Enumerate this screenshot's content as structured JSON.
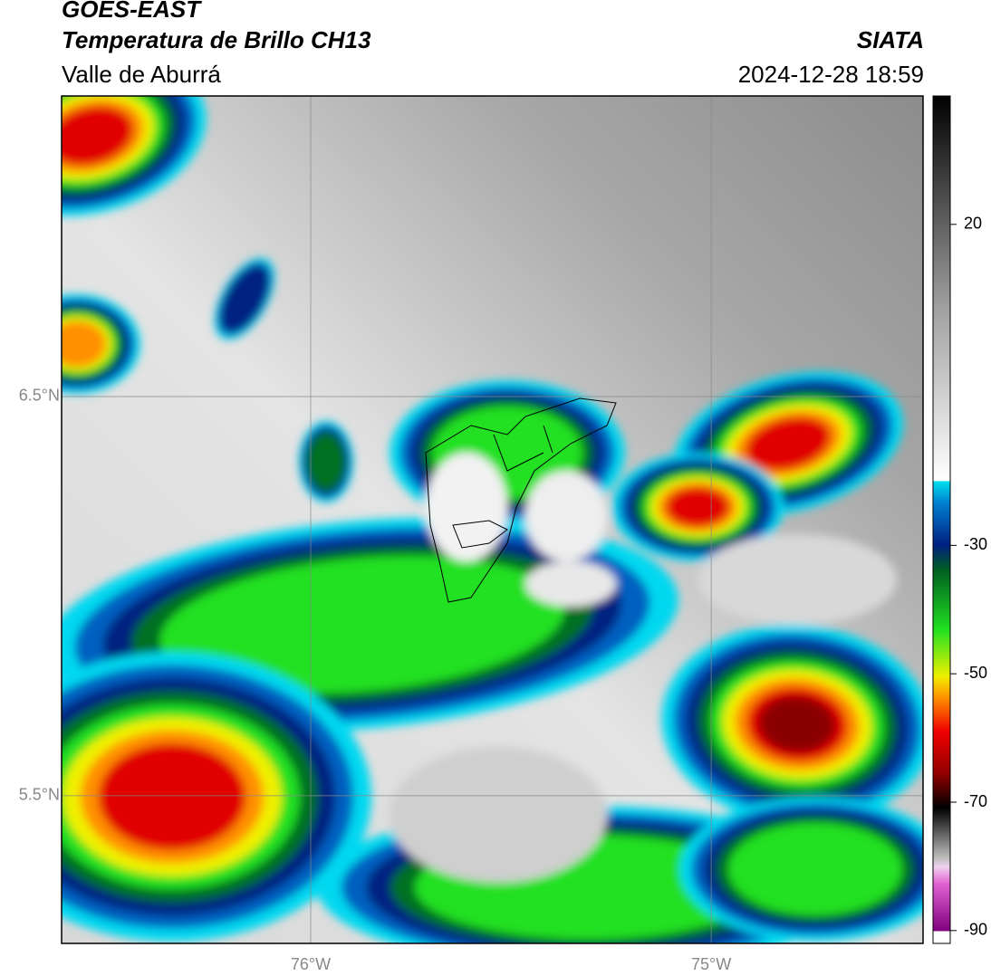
{
  "header": {
    "satellite": "GOES-EAST",
    "product": "Temperatura de Brillo CH13",
    "region": "Valle de Aburrá",
    "agency": "SIATA",
    "timestamp": "2024-12-28 18:59"
  },
  "map": {
    "xlim": [
      -76.622,
      -74.471
    ],
    "ylim": [
      5.13,
      7.253
    ],
    "xticks": [
      {
        "value": -76,
        "label": "76°W"
      },
      {
        "value": -75,
        "label": "75°W"
      }
    ],
    "yticks": [
      {
        "value": 6.5,
        "label": "6.5°N"
      },
      {
        "value": 5.5,
        "label": "5.5°N"
      }
    ],
    "grid": true
  },
  "colorbar": {
    "lim": [
      -92,
      40
    ],
    "ticks": [
      20,
      -30,
      -50,
      -70,
      -90
    ]
  }
}
